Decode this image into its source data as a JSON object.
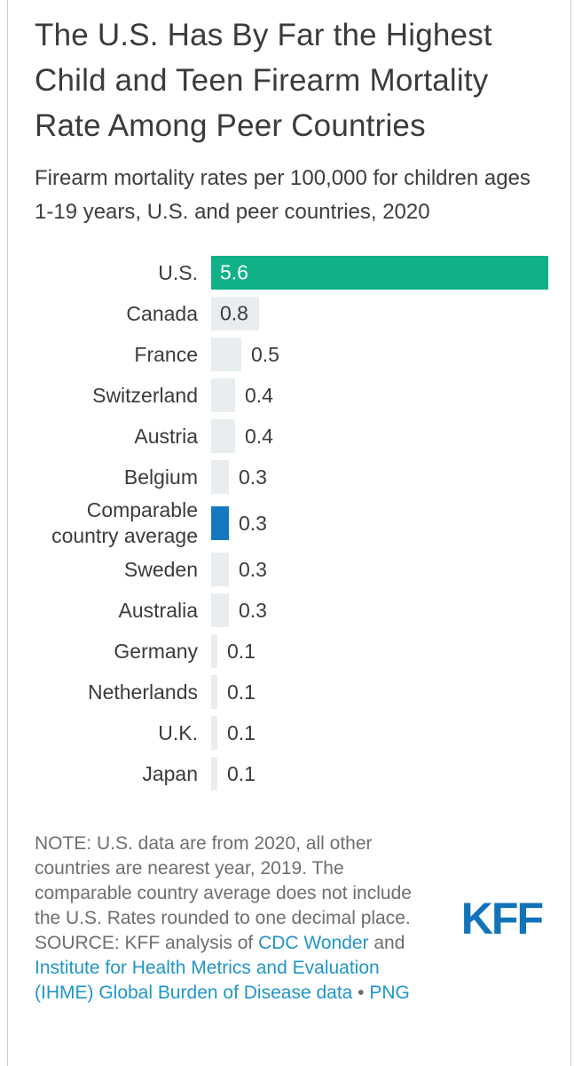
{
  "page": {
    "title": "The U.S. Has By Far the Highest Child and Teen Firearm Mortality Rate Among Peer Countries",
    "subtitle": "Firearm mortality rates per 100,000 for children ages 1-19 years, U.S. and peer countries, 2020"
  },
  "chart_data": {
    "type": "bar",
    "orientation": "horizontal",
    "title": "The U.S. Has By Far the Highest Child and Teen Firearm Mortality Rate Among Peer Countries",
    "subtitle": "Firearm mortality rates per 100,000 for children ages 1-19 years, U.S. and peer countries, 2020",
    "xlim": [
      0,
      5.6
    ],
    "grid": false,
    "legend": false,
    "value_labels_shown": true,
    "rows": [
      {
        "label": "U.S.",
        "value": 5.6,
        "display": "5.6",
        "role": "us"
      },
      {
        "label": "Canada",
        "value": 0.8,
        "display": "0.8",
        "role": "default"
      },
      {
        "label": "France",
        "value": 0.5,
        "display": "0.5",
        "role": "default"
      },
      {
        "label": "Switzerland",
        "value": 0.4,
        "display": "0.4",
        "role": "default"
      },
      {
        "label": "Austria",
        "value": 0.4,
        "display": "0.4",
        "role": "default"
      },
      {
        "label": "Belgium",
        "value": 0.3,
        "display": "0.3",
        "role": "default"
      },
      {
        "label": "Comparable country average",
        "value": 0.3,
        "display": "0.3",
        "role": "average"
      },
      {
        "label": "Sweden",
        "value": 0.3,
        "display": "0.3",
        "role": "default"
      },
      {
        "label": "Australia",
        "value": 0.3,
        "display": "0.3",
        "role": "default"
      },
      {
        "label": "Germany",
        "value": 0.1,
        "display": "0.1",
        "role": "default"
      },
      {
        "label": "Netherlands",
        "value": 0.1,
        "display": "0.1",
        "role": "default"
      },
      {
        "label": "U.K.",
        "value": 0.1,
        "display": "0.1",
        "role": "default"
      },
      {
        "label": "Japan",
        "value": 0.1,
        "display": "0.1",
        "role": "default"
      }
    ],
    "colors": {
      "us": "#10b187",
      "average": "#1379bf",
      "default": "#e8edf0"
    }
  },
  "footer": {
    "note": "NOTE: U.S. data are from 2020, all other countries are nearest year, 2019. The comparable country average does not include the U.S. Rates rounded to one decimal place.",
    "source_prefix": "SOURCE: KFF analysis of ",
    "link_cdc": "CDC Wonder",
    "source_and": " and ",
    "link_ihme": "Institute for Health Metrics and Evaluation (IHME) Global Burden of Disease data",
    "separator": " • ",
    "link_png": "PNG",
    "logo_text": "KFF"
  }
}
